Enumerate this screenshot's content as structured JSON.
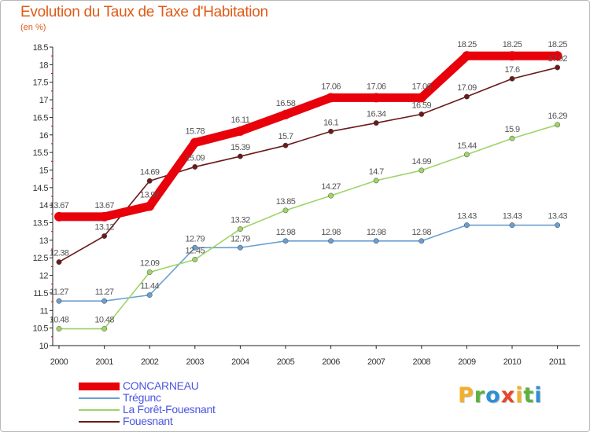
{
  "header": {
    "title": "Evolution du Taux de Taxe d'Habitation",
    "subtitle": "(en %)"
  },
  "chart_data": {
    "type": "line",
    "x": [
      "2000",
      "2001",
      "2002",
      "2003",
      "2004",
      "2005",
      "2006",
      "2007",
      "2008",
      "2009",
      "2010",
      "2011"
    ],
    "ylim": [
      10,
      18.5
    ],
    "yticks": [
      "10",
      "10.5",
      "11",
      "11.5",
      "12",
      "12.5",
      "13",
      "13.5",
      "14",
      "14.5",
      "15",
      "15.5",
      "16",
      "16.5",
      "17",
      "17.5",
      "18",
      "18.5"
    ],
    "grid": false,
    "legend_position": "bottom-left",
    "series": [
      {
        "name": "CONCARNEAU",
        "color": "#e8000b",
        "values": [
          13.67,
          13.67,
          13.97,
          15.78,
          16.11,
          16.58,
          17.06,
          17.06,
          17.06,
          18.25,
          18.25,
          18.25
        ],
        "labels": [
          "13.67",
          "13.67",
          "13.97",
          "15.78",
          "16.11",
          "16.58",
          "17.06",
          "17.06",
          "17.06",
          "18.25",
          "18.25",
          "18.25"
        ]
      },
      {
        "name": "Trégunc",
        "color": "#6a9fd0",
        "values": [
          11.27,
          11.27,
          11.44,
          12.79,
          12.79,
          12.98,
          12.98,
          12.98,
          12.98,
          13.43,
          13.43,
          13.43
        ],
        "labels": [
          "11.27",
          "11.27",
          "11.44",
          "12.79",
          "12.79",
          "12.98",
          "12.98",
          "12.98",
          "12.98",
          "13.43",
          "13.43",
          "13.43"
        ]
      },
      {
        "name": "La Forêt-Fouesnant",
        "color": "#9fd468",
        "values": [
          10.48,
          10.48,
          12.09,
          12.45,
          13.32,
          13.85,
          14.27,
          14.7,
          14.99,
          15.44,
          15.9,
          16.29
        ],
        "labels": [
          "10.48",
          "10.48",
          "12.09",
          "12.45",
          "13.32",
          "13.85",
          "14.27",
          "14.7",
          "14.99",
          "15.44",
          "15.9",
          "16.29"
        ]
      },
      {
        "name": "Fouesnant",
        "color": "#6b1a1a",
        "values": [
          12.38,
          13.12,
          14.69,
          15.09,
          15.39,
          15.7,
          16.1,
          16.34,
          16.59,
          17.09,
          17.6,
          17.92
        ],
        "labels": [
          "12.38",
          "13.12",
          "14.69",
          "15.09",
          "15.39",
          "15.7",
          "16.1",
          "16.34",
          "16.59",
          "17.09",
          "17.6",
          "17.92"
        ]
      }
    ]
  },
  "legend": {
    "items": [
      {
        "label": "CONCARNEAU",
        "color": "#e8000b"
      },
      {
        "label": "Trégunc",
        "color": "#6a9fd0"
      },
      {
        "label": "La Forêt-Fouesnant",
        "color": "#9fd468"
      },
      {
        "label": "Fouesnant",
        "color": "#6b1a1a"
      }
    ]
  },
  "logo": {
    "letters": [
      "P",
      "r",
      "o",
      "x",
      "i",
      "t",
      "i"
    ],
    "colors": [
      "#f2b02a",
      "#5ab33f",
      "#2f8fd6",
      "#e7452c",
      "#f2b02a",
      "#5ab33f",
      "#2f8fd6"
    ]
  }
}
